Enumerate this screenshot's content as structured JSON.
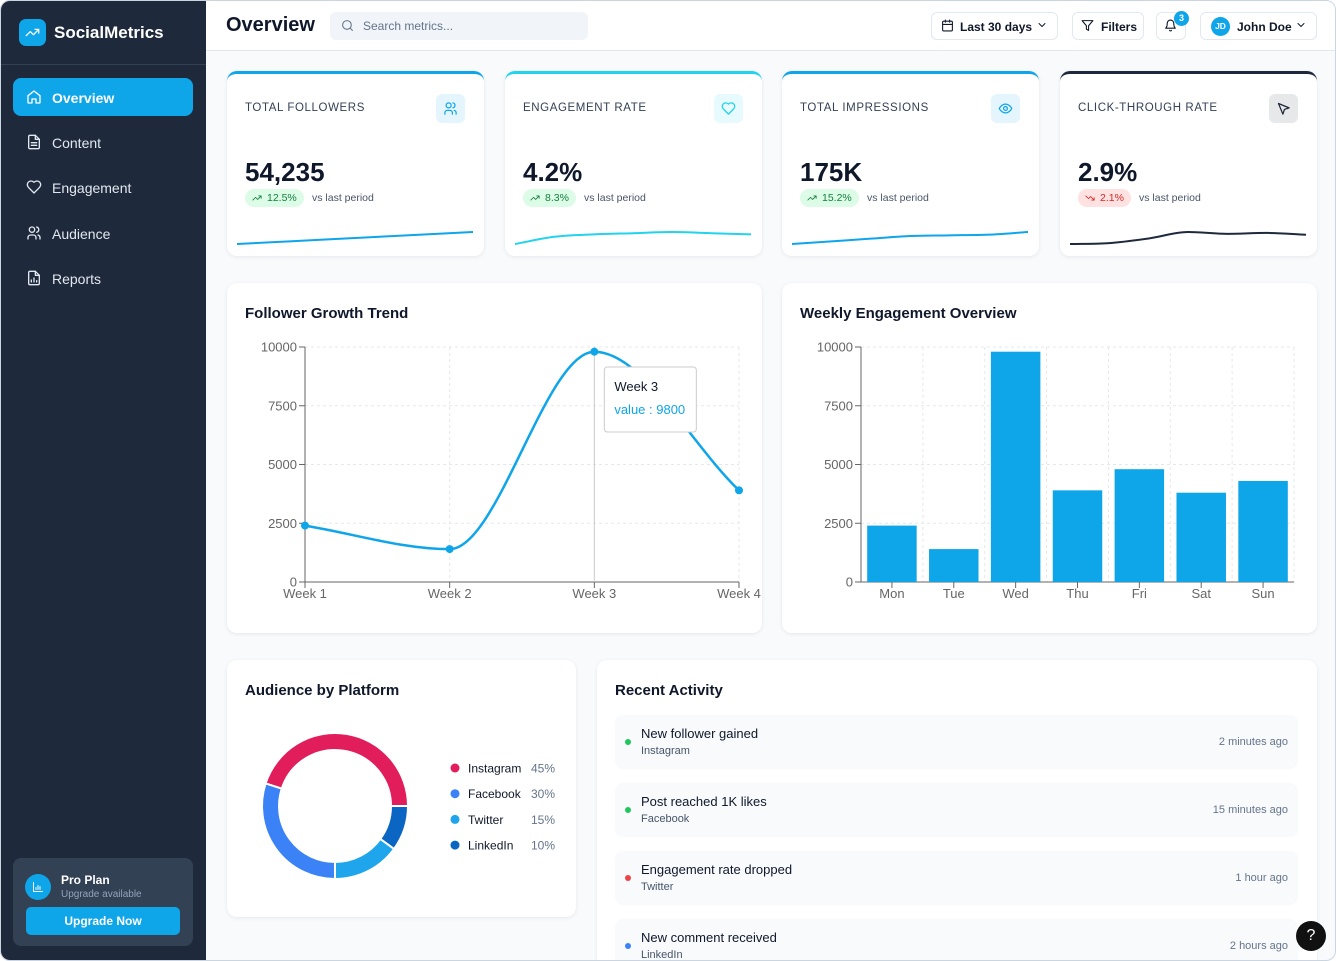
{
  "sidebar": {
    "brand": "SocialMetrics",
    "nav": [
      "Overview",
      "Content",
      "Engagement",
      "Audience",
      "Reports"
    ],
    "active": 0,
    "plan": {
      "title": "Pro Plan",
      "subtitle": "Upgrade available",
      "button": "Upgrade Now"
    }
  },
  "header": {
    "title": "Overview",
    "search_placeholder": "Search metrics...",
    "date_range": "Last 30 days",
    "filters": "Filters",
    "notifications": "3",
    "user_initials": "JD",
    "user_name": "John Doe"
  },
  "kpis": [
    {
      "label": "TOTAL FOLLOWERS",
      "value": "54,235",
      "change": "12.5%",
      "direction": "up",
      "note": "vs last period",
      "color": "#0ea5e9",
      "sparkline": [
        10,
        11,
        12,
        13,
        14,
        15,
        16
      ]
    },
    {
      "label": "ENGAGEMENT RATE",
      "value": "4.2%",
      "change": "8.3%",
      "direction": "up",
      "note": "vs last period",
      "color": "#22d3ee",
      "sparkline": [
        2,
        5,
        6,
        6.5,
        7,
        6.5,
        6
      ]
    },
    {
      "label": "TOTAL IMPRESSIONS",
      "value": "175K",
      "change": "15.2%",
      "direction": "up",
      "note": "vs last period",
      "color": "#0ea5e9",
      "sparkline": [
        2,
        4,
        6,
        8,
        8.5,
        9,
        11
      ]
    },
    {
      "label": "CLICK-THROUGH RATE",
      "value": "2.9%",
      "change": "2.1%",
      "direction": "down",
      "note": "vs last period",
      "color": "#1e293b",
      "sparkline": [
        2,
        2.5,
        5,
        8.5,
        7.5,
        8,
        7
      ]
    }
  ],
  "chart_data": [
    {
      "type": "line",
      "title": "Follower Growth Trend",
      "categories": [
        "Week 1",
        "Week 2",
        "Week 3",
        "Week 4"
      ],
      "values": [
        2400,
        1400,
        9800,
        3900
      ],
      "color": "#0ea5e9",
      "ylim": [
        0,
        10000
      ],
      "yticks": [
        0,
        2500,
        5000,
        7500,
        10000
      ],
      "grid": true,
      "tooltip": {
        "title": "Week 3",
        "text": "value : 9800"
      }
    },
    {
      "type": "bar",
      "title": "Weekly Engagement Overview",
      "categories": [
        "Mon",
        "Tue",
        "Wed",
        "Thu",
        "Fri",
        "Sat",
        "Sun"
      ],
      "values": [
        2400,
        1400,
        9800,
        3900,
        4800,
        3800,
        4300
      ],
      "color": "#0ea5e9",
      "ylim": [
        0,
        10000
      ],
      "yticks": [
        0,
        2500,
        5000,
        7500,
        10000
      ],
      "grid": true
    },
    {
      "type": "pie",
      "title": "Audience by Platform",
      "categories": [
        "Instagram",
        "Facebook",
        "Twitter",
        "LinkedIn"
      ],
      "values": [
        45,
        30,
        15,
        10
      ],
      "value_labels": [
        "45%",
        "30%",
        "15%",
        "10%"
      ],
      "colors": [
        "#e11d5c",
        "#3b82f6",
        "#1ea5ec",
        "#0a66c2"
      ]
    }
  ],
  "activity": {
    "title": "Recent Activity",
    "items": [
      {
        "title": "New follower gained",
        "source": "Instagram",
        "time": "2 minutes ago",
        "color": "#22c55e"
      },
      {
        "title": "Post reached 1K likes",
        "source": "Facebook",
        "time": "15 minutes ago",
        "color": "#22c55e"
      },
      {
        "title": "Engagement rate dropped",
        "source": "Twitter",
        "time": "1 hour ago",
        "color": "#ef4444"
      },
      {
        "title": "New comment received",
        "source": "LinkedIn",
        "time": "2 hours ago",
        "color": "#3b82f6"
      }
    ]
  },
  "help": "?"
}
